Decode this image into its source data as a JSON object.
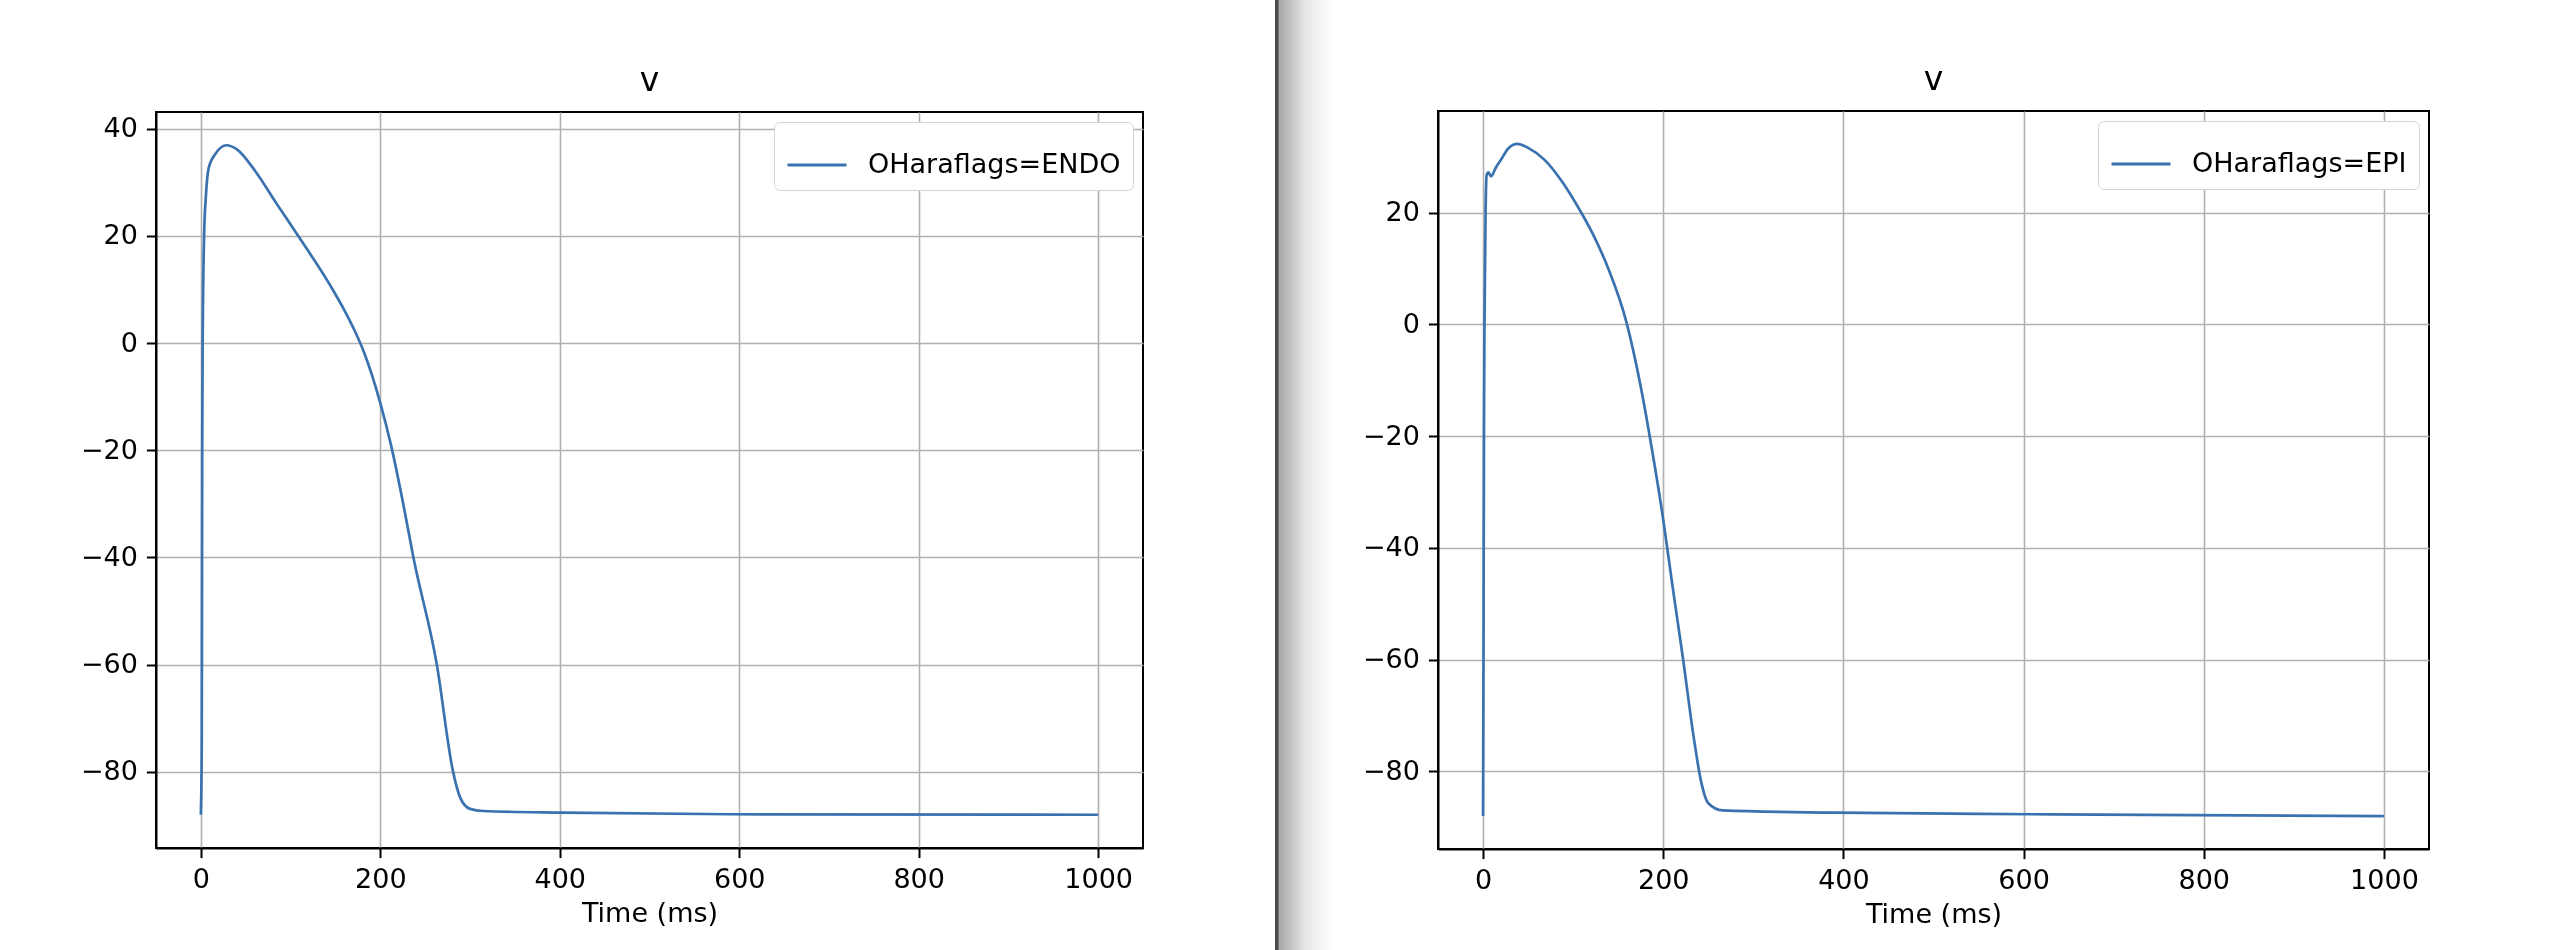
{
  "chart_data": [
    {
      "type": "line",
      "title": "v",
      "xlabel": "Time (ms)",
      "x": [
        0,
        1,
        1.5,
        2,
        3.6,
        5.6,
        8.8,
        16.7,
        28.6,
        40.5,
        60.5,
        84,
        108,
        144,
        160,
        172,
        182,
        200,
        212,
        226,
        237,
        263,
        281,
        289,
        300,
        315,
        404,
        590,
        1000
      ],
      "series": [
        {
          "name": "OHaraflags=ENDO",
          "color": "#3a72b0",
          "values": [
            -88,
            -75,
            -20,
            0,
            20,
            27.4,
            32.7,
            35.4,
            36.9,
            36.1,
            32.1,
            26.1,
            20.1,
            10.8,
            6.1,
            2.1,
            -1.8,
            -11.2,
            -19.1,
            -30.4,
            -40.1,
            -60,
            -79.9,
            -84.8,
            -86.9,
            -87.3,
            -87.6,
            -87.9,
            -88
          ]
        }
      ],
      "xlim": [
        -50,
        1050
      ],
      "ylim": [
        -94.2,
        43.1
      ],
      "xticks": [
        0,
        200,
        400,
        600,
        800,
        1000
      ],
      "yticks": [
        {
          "value": -80,
          "label": "−80"
        },
        {
          "value": -60,
          "label": "−60"
        },
        {
          "value": -40,
          "label": "−40"
        },
        {
          "value": -20,
          "label": "−20"
        },
        0,
        20,
        40
      ],
      "grid": true,
      "legend": "top right"
    },
    {
      "type": "line",
      "title": "v",
      "xlabel": "Time (ms)",
      "x": [
        0,
        0.5,
        1,
        1.6,
        2.8,
        4,
        6,
        9,
        14,
        20,
        28,
        38,
        50,
        68,
        88,
        108,
        124,
        139,
        159,
        175,
        187,
        198,
        211,
        222,
        234,
        242,
        250,
        266,
        391,
        631,
        1000
      ],
      "series": [
        {
          "name": "OHaraflags=EPI",
          "color": "#3a72b0",
          "values": [
            -88,
            -60,
            -20,
            0,
            20,
            26.7,
            27.2,
            26.5,
            28,
            29.5,
            31.5,
            32.3,
            31.6,
            29.5,
            25.5,
            20.3,
            15.5,
            10,
            0.5,
            -11.1,
            -21.9,
            -32.8,
            -47.6,
            -59.9,
            -74.1,
            -81.8,
            -85.7,
            -87,
            -87.4,
            -87.7,
            -88
          ]
        }
      ],
      "xlim": [
        -50,
        1050
      ],
      "ylim": [
        -93.9,
        38.2
      ],
      "xticks": [
        0,
        200,
        400,
        600,
        800,
        1000
      ],
      "yticks": [
        {
          "value": -80,
          "label": "−80"
        },
        {
          "value": -60,
          "label": "−60"
        },
        {
          "value": -40,
          "label": "−40"
        },
        {
          "value": -20,
          "label": "−20"
        },
        0,
        20
      ],
      "grid": true,
      "legend": "top right"
    }
  ]
}
